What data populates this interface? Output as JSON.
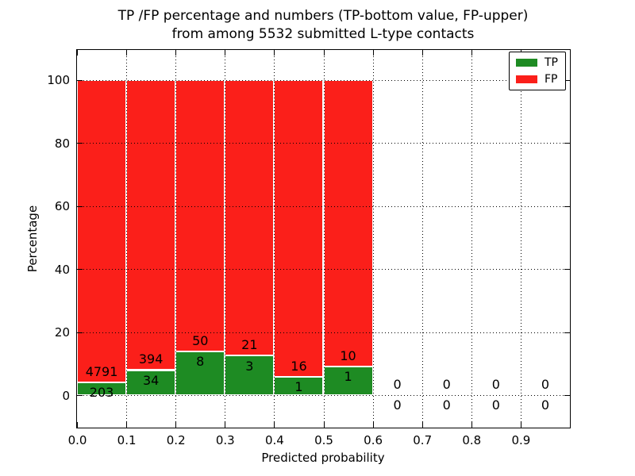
{
  "chart_data": {
    "type": "bar",
    "stacked": true,
    "title": [
      "TP /FP percentage and numbers (TP-bottom value, FP-upper)",
      "from among 5532 submitted L-type contacts"
    ],
    "xlabel": "Predicted probability",
    "ylabel": "Percentage",
    "total_contacts": 5532,
    "x_bin_edges": [
      0.0,
      0.1,
      0.2,
      0.3,
      0.4,
      0.5,
      0.6,
      0.7,
      0.8,
      0.9,
      1.0
    ],
    "series": [
      {
        "name": "TP",
        "color": "#1e8b23",
        "counts": [
          203,
          34,
          8,
          3,
          1,
          1,
          0,
          0,
          0,
          0
        ]
      },
      {
        "name": "FP",
        "color": "#fb1f1a",
        "counts": [
          4791,
          394,
          50,
          21,
          16,
          10,
          0,
          0,
          0,
          0
        ]
      }
    ],
    "tp_percent_by_bin": [
      4.06,
      7.94,
      13.79,
      12.5,
      5.88,
      9.09,
      0,
      0,
      0,
      0
    ],
    "bar_total_percent_when_nonzero": 100,
    "xticks": [
      "0.0",
      "0.1",
      "0.2",
      "0.3",
      "0.4",
      "0.5",
      "0.6",
      "0.7",
      "0.8",
      "0.9"
    ],
    "yticks": [
      "0",
      "20",
      "40",
      "60",
      "80",
      "100"
    ],
    "xlim": [
      0.0,
      1.0
    ],
    "ylim": [
      -10.3,
      109.5
    ],
    "grid": {
      "style": "dotted",
      "color": "#000000",
      "drawn_above_bars": true
    },
    "legend": {
      "position": "upper right",
      "entries": [
        {
          "label": "TP",
          "color": "#1e8b23"
        },
        {
          "label": "FP",
          "color": "#fb1f1a"
        }
      ]
    },
    "annotation_rule": "FP count printed above green/red boundary, TP count printed below it"
  }
}
